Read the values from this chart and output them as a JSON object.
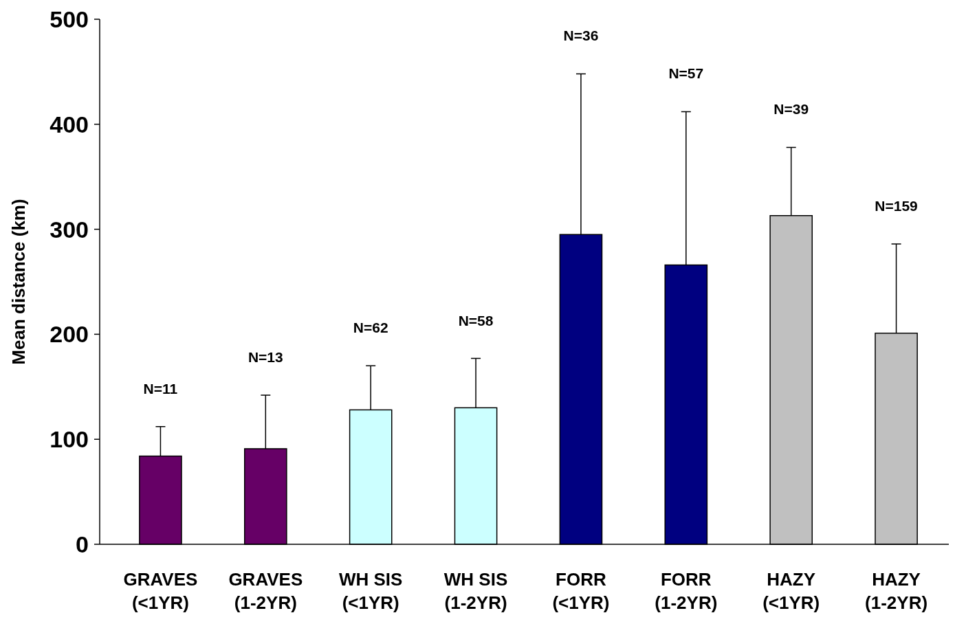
{
  "chart_data": {
    "type": "bar",
    "ylabel": "Mean distance (km)",
    "categories": [
      "GRAVES\n(<1YR)",
      "GRAVES\n(1-2YR)",
      "WH SIS\n(<1YR)",
      "WH SIS\n(1-2YR)",
      "FORR\n(<1YR)",
      "FORR\n(1-2YR)",
      "HAZY\n(<1YR)",
      "HAZY\n(1-2YR)"
    ],
    "values": [
      84,
      91,
      128,
      130,
      295,
      266,
      313,
      201
    ],
    "colors": [
      "#660066",
      "#660066",
      "#ccffff",
      "#ccffff",
      "#000080",
      "#000080",
      "#c0c0c0",
      "#c0c0c0"
    ],
    "errors": [
      [
        84,
        112
      ],
      [
        91,
        142
      ],
      [
        128,
        170
      ],
      [
        130,
        177
      ],
      [
        295,
        448
      ],
      [
        266,
        412
      ],
      [
        313,
        378
      ],
      [
        201,
        286
      ]
    ],
    "ylim": [
      0,
      500
    ],
    "yticks": [
      0,
      100,
      200,
      300,
      400,
      500
    ],
    "grid": false,
    "annotations": [
      "N=11",
      "N=13",
      "N=62",
      "N=58",
      "N=36",
      "N=57",
      "N=39",
      "N=159"
    ]
  }
}
